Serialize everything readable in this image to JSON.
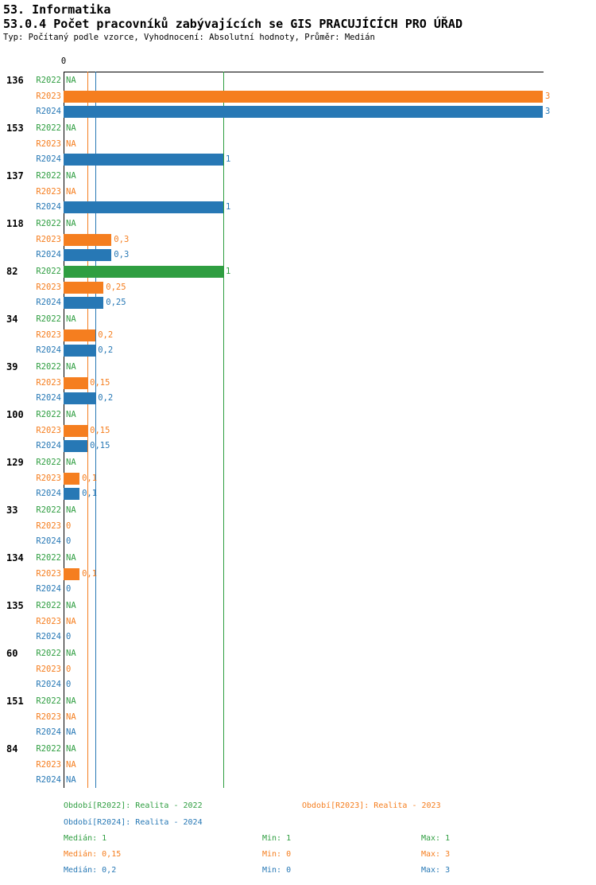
{
  "header": {
    "section_title": "53. Informatika",
    "title": "53.0.4 Počet pracovníků zabývajících se GIS PRACUJÍCÍCH PRO ÚŘAD",
    "subtitle": "Typ: Počítaný podle vzorce, Vyhodnocení: Absolutní hodnoty, Průměr: Medián"
  },
  "chart_data": {
    "type": "bar",
    "orientation": "horizontal",
    "title": "53.0.4 Počet pracovníků zabývajících se GIS PRACUJÍCÍCH PRO ÚŘAD",
    "xlim": [
      0,
      3
    ],
    "grid": "median-lines-only",
    "axis": {
      "zero_label": "0"
    },
    "series": [
      {
        "key": "R2022",
        "row_label": "R2022",
        "color": "#2f9e41",
        "legend": "Období[R2022]: Realita - 2022",
        "median": 1,
        "stats": {
          "median": "Medián: 1",
          "min": "Min: 1",
          "max": "Max: 1"
        }
      },
      {
        "key": "R2023",
        "row_label": "R2023",
        "color": "#f57e1f",
        "legend": "Období[R2023]: Realita - 2023",
        "median": 0.15,
        "stats": {
          "median": "Medián: 0,15",
          "min": "Min: 0",
          "max": "Max: 3"
        }
      },
      {
        "key": "R2024",
        "row_label": "R2024",
        "color": "#2778b5",
        "legend": "Období[R2024]: Realita - 2024",
        "median": 0.2,
        "stats": {
          "median": "Medián: 0,2",
          "min": "Min: 0",
          "max": "Max: 3"
        }
      }
    ],
    "groups": [
      {
        "id": "136",
        "values": [
          null,
          3,
          3
        ],
        "labels": [
          "NA",
          "3",
          "3"
        ]
      },
      {
        "id": "153",
        "values": [
          null,
          null,
          1
        ],
        "labels": [
          "NA",
          "NA",
          "1"
        ]
      },
      {
        "id": "137",
        "values": [
          null,
          null,
          1
        ],
        "labels": [
          "NA",
          "NA",
          "1"
        ]
      },
      {
        "id": "118",
        "values": [
          null,
          0.3,
          0.3
        ],
        "labels": [
          "NA",
          "0,3",
          "0,3"
        ]
      },
      {
        "id": "82",
        "values": [
          1,
          0.25,
          0.25
        ],
        "labels": [
          "1",
          "0,25",
          "0,25"
        ]
      },
      {
        "id": "34",
        "values": [
          null,
          0.2,
          0.2
        ],
        "labels": [
          "NA",
          "0,2",
          "0,2"
        ]
      },
      {
        "id": "39",
        "values": [
          null,
          0.15,
          0.2
        ],
        "labels": [
          "NA",
          "0,15",
          "0,2"
        ]
      },
      {
        "id": "100",
        "values": [
          null,
          0.15,
          0.15
        ],
        "labels": [
          "NA",
          "0,15",
          "0,15"
        ]
      },
      {
        "id": "129",
        "values": [
          null,
          0.1,
          0.1
        ],
        "labels": [
          "NA",
          "0,1",
          "0,1"
        ]
      },
      {
        "id": "33",
        "values": [
          null,
          0,
          0
        ],
        "labels": [
          "NA",
          "0",
          "0"
        ]
      },
      {
        "id": "134",
        "values": [
          null,
          0.1,
          0
        ],
        "labels": [
          "NA",
          "0,1",
          "0"
        ]
      },
      {
        "id": "135",
        "values": [
          null,
          null,
          0
        ],
        "labels": [
          "NA",
          "NA",
          "0"
        ]
      },
      {
        "id": "60",
        "values": [
          null,
          0,
          0
        ],
        "labels": [
          "NA",
          "0",
          "0"
        ]
      },
      {
        "id": "151",
        "values": [
          null,
          null,
          null
        ],
        "labels": [
          "NA",
          "NA",
          "NA"
        ]
      },
      {
        "id": "84",
        "values": [
          null,
          null,
          null
        ],
        "labels": [
          "NA",
          "NA",
          "NA"
        ]
      }
    ]
  }
}
